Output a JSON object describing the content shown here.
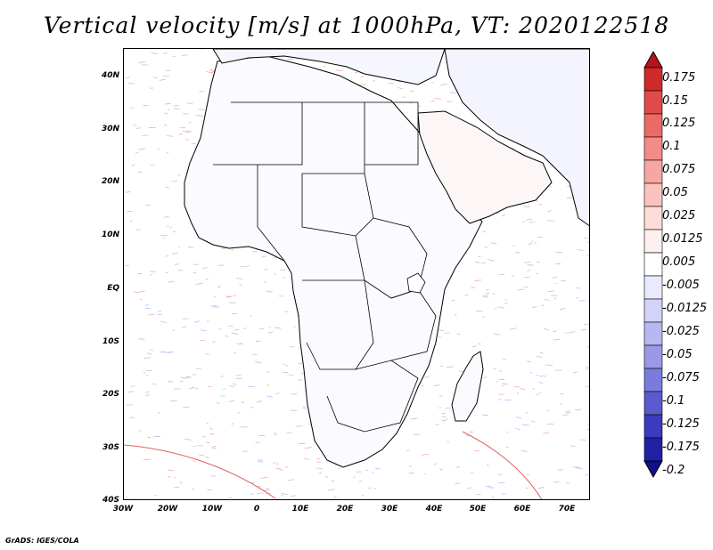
{
  "title": "Vertical velocity [m/s] at 1000hPa, VT: 2020122518",
  "map": {
    "region": "Africa",
    "latitude_labels": [
      "40N",
      "30N",
      "20N",
      "10N",
      "EQ",
      "10S",
      "20S",
      "30S",
      "40S"
    ],
    "latitude_values": [
      40,
      30,
      20,
      10,
      0,
      -10,
      -20,
      -30,
      -40
    ],
    "longitude_labels": [
      "30W",
      "20W",
      "10W",
      "0",
      "10E",
      "20E",
      "30E",
      "40E",
      "50E",
      "60E",
      "70E"
    ],
    "longitude_values": [
      -30,
      -20,
      -10,
      0,
      10,
      20,
      30,
      40,
      50,
      60,
      70
    ],
    "lon_range": [
      -30,
      75
    ],
    "lat_range": [
      -40,
      45
    ]
  },
  "colorbar": {
    "levels": [
      "0.175",
      "0.15",
      "0.125",
      "0.1",
      "0.075",
      "0.05",
      "0.025",
      "0.0125",
      "0.005",
      "-0.005",
      "-0.0125",
      "-0.025",
      "-0.05",
      "-0.075",
      "-0.1",
      "-0.125",
      "-0.175",
      "-0.2"
    ],
    "colors": [
      "#b4141e",
      "#cf2a2a",
      "#e04a48",
      "#ec6a66",
      "#f38b87",
      "#f7a7a3",
      "#fbc3c0",
      "#fddcda",
      "#fff0ef",
      "#ffffff",
      "#eaeaff",
      "#d2d2fa",
      "#b7b7f2",
      "#9999e8",
      "#7b7bdd",
      "#5a5acf",
      "#3b3bbd",
      "#2020a5",
      "#101088"
    ]
  },
  "footer": "GrADS: IGES/COLA"
}
